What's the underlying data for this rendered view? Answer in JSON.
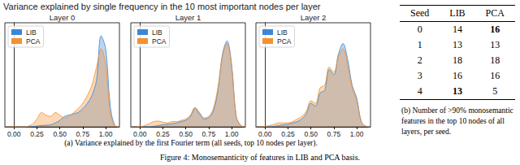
{
  "title": "Variance explained by single frequency in the 10 most important nodes per layer",
  "chart_data": [
    {
      "type": "line",
      "title": "Layer 0",
      "x": [
        -0.1,
        -0.05,
        0,
        0.05,
        0.1,
        0.15,
        0.2,
        0.25,
        0.3,
        0.35,
        0.4,
        0.45,
        0.5,
        0.55,
        0.6,
        0.65,
        0.7,
        0.75,
        0.8,
        0.85,
        0.9,
        0.95,
        1,
        1.05,
        1.1,
        1.15
      ],
      "series": [
        {
          "name": "LIB",
          "color": "#3b87d6",
          "values": [
            0,
            0,
            0,
            0,
            0,
            0,
            0.01,
            0.03,
            0.05,
            0.06,
            0.08,
            0.15,
            0.25,
            0.4,
            0.45,
            0.5,
            0.55,
            0.7,
            0.9,
            1.2,
            1.8,
            3.5,
            3.0,
            0.8,
            0.05,
            0
          ]
        },
        {
          "name": "PCA",
          "color": "#f5902e",
          "values": [
            0,
            0,
            0,
            0,
            0,
            0.02,
            0.1,
            0.3,
            0.55,
            0.45,
            0.4,
            0.55,
            0.45,
            0.35,
            0.4,
            0.55,
            0.7,
            0.9,
            1.2,
            1.6,
            2.3,
            3.0,
            2.4,
            0.5,
            0.05,
            0
          ]
        }
      ],
      "xlim": [
        -0.1,
        1.15
      ],
      "xticks": [
        {
          "value": 0,
          "label": "0.00"
        },
        {
          "value": 0.25,
          "label": "0.25"
        },
        {
          "value": 0.5,
          "label": "0.50"
        },
        {
          "value": 0.75,
          "label": "0.75"
        },
        {
          "value": 1,
          "label": "1.00"
        }
      ],
      "ylim": [
        0,
        4
      ],
      "tick_labels": "x",
      "legend": "upper left"
    },
    {
      "type": "line",
      "title": "Layer 1",
      "x": [
        -0.1,
        -0.05,
        0,
        0.05,
        0.1,
        0.15,
        0.2,
        0.25,
        0.3,
        0.35,
        0.4,
        0.45,
        0.5,
        0.55,
        0.6,
        0.65,
        0.7,
        0.75,
        0.8,
        0.85,
        0.9,
        0.95,
        1,
        1.05,
        1.1,
        1.15
      ],
      "series": [
        {
          "name": "LIB",
          "color": "#3b87d6",
          "values": [
            0,
            0,
            0,
            0,
            0,
            0.02,
            0.05,
            0.08,
            0.1,
            0.12,
            0.15,
            0.2,
            0.25,
            0.4,
            0.7,
            0.5,
            0.3,
            0.35,
            0.6,
            1.4,
            2.8,
            3.3,
            2.4,
            0.4,
            0.05,
            0
          ]
        },
        {
          "name": "PCA",
          "color": "#f5902e",
          "values": [
            0,
            0,
            0,
            0.05,
            0.12,
            0.2,
            0.22,
            0.18,
            0.15,
            0.2,
            0.2,
            0.25,
            0.3,
            0.45,
            0.75,
            0.55,
            0.35,
            0.4,
            0.7,
            1.5,
            2.7,
            3.2,
            2.3,
            0.4,
            0.05,
            0
          ]
        }
      ],
      "xlim": [
        -0.1,
        1.15
      ],
      "xticks": [
        {
          "value": 0,
          "label": "0.00"
        },
        {
          "value": 0.25,
          "label": "0.25"
        },
        {
          "value": 0.5,
          "label": "0.50"
        },
        {
          "value": 0.75,
          "label": "0.75"
        },
        {
          "value": 1,
          "label": "1.00"
        }
      ],
      "ylim": [
        0,
        4
      ],
      "tick_labels": "x",
      "legend": "upper left"
    },
    {
      "type": "line",
      "title": "Layer 2",
      "x": [
        -0.1,
        -0.05,
        0,
        0.05,
        0.1,
        0.15,
        0.2,
        0.25,
        0.3,
        0.35,
        0.4,
        0.45,
        0.5,
        0.55,
        0.6,
        0.65,
        0.7,
        0.75,
        0.8,
        0.85,
        0.9,
        0.95,
        1,
        1.05,
        1.1,
        1.15
      ],
      "series": [
        {
          "name": "LIB",
          "color": "#3b87d6",
          "values": [
            0,
            0,
            0,
            0,
            0.02,
            0.05,
            0.08,
            0.1,
            0.15,
            0.2,
            0.3,
            0.5,
            0.9,
            0.8,
            1.3,
            1.4,
            2.2,
            2.0,
            2.8,
            3.2,
            2.6,
            1.6,
            1.1,
            0.2,
            0.02,
            0
          ]
        },
        {
          "name": "PCA",
          "color": "#f5902e",
          "values": [
            0,
            0,
            0.02,
            0.05,
            0.1,
            0.15,
            0.15,
            0.15,
            0.2,
            0.3,
            0.4,
            0.6,
            1.0,
            0.9,
            1.5,
            1.6,
            2.3,
            2.1,
            2.7,
            3.0,
            2.4,
            1.5,
            1.0,
            0.2,
            0.02,
            0
          ]
        }
      ],
      "xlim": [
        -0.1,
        1.15
      ],
      "xticks": [
        {
          "value": 0,
          "label": "0.00"
        },
        {
          "value": 0.25,
          "label": "0.25"
        },
        {
          "value": 0.5,
          "label": "0.50"
        },
        {
          "value": 0.75,
          "label": "0.75"
        },
        {
          "value": 1,
          "label": "1.00"
        }
      ],
      "ylim": [
        0,
        4
      ],
      "tick_labels": "x",
      "legend": "upper left"
    }
  ],
  "caption_a": "(a) Variance explained by the first Fourier term (all seeds, top 10 nodes per layer).",
  "table": {
    "header": [
      "Seed",
      "LIB",
      "PCA"
    ],
    "rows": [
      [
        {
          "value": 0
        },
        {
          "value": 14
        },
        {
          "value": 16,
          "bold": true
        }
      ],
      [
        {
          "value": 1
        },
        {
          "value": 13
        },
        {
          "value": 13
        }
      ],
      [
        {
          "value": 2
        },
        {
          "value": 18
        },
        {
          "value": 18
        }
      ],
      [
        {
          "value": 3
        },
        {
          "value": 16
        },
        {
          "value": 16
        }
      ],
      [
        {
          "value": 4
        },
        {
          "value": 13,
          "bold": true
        },
        {
          "value": 5
        }
      ]
    ]
  },
  "caption_b": "(b) Number of >90% monosemantic features in the top 10 nodes of all layers, per seed.",
  "figure_caption": "Figure 4: Monosemanticity of features in LIB and PCA basis."
}
